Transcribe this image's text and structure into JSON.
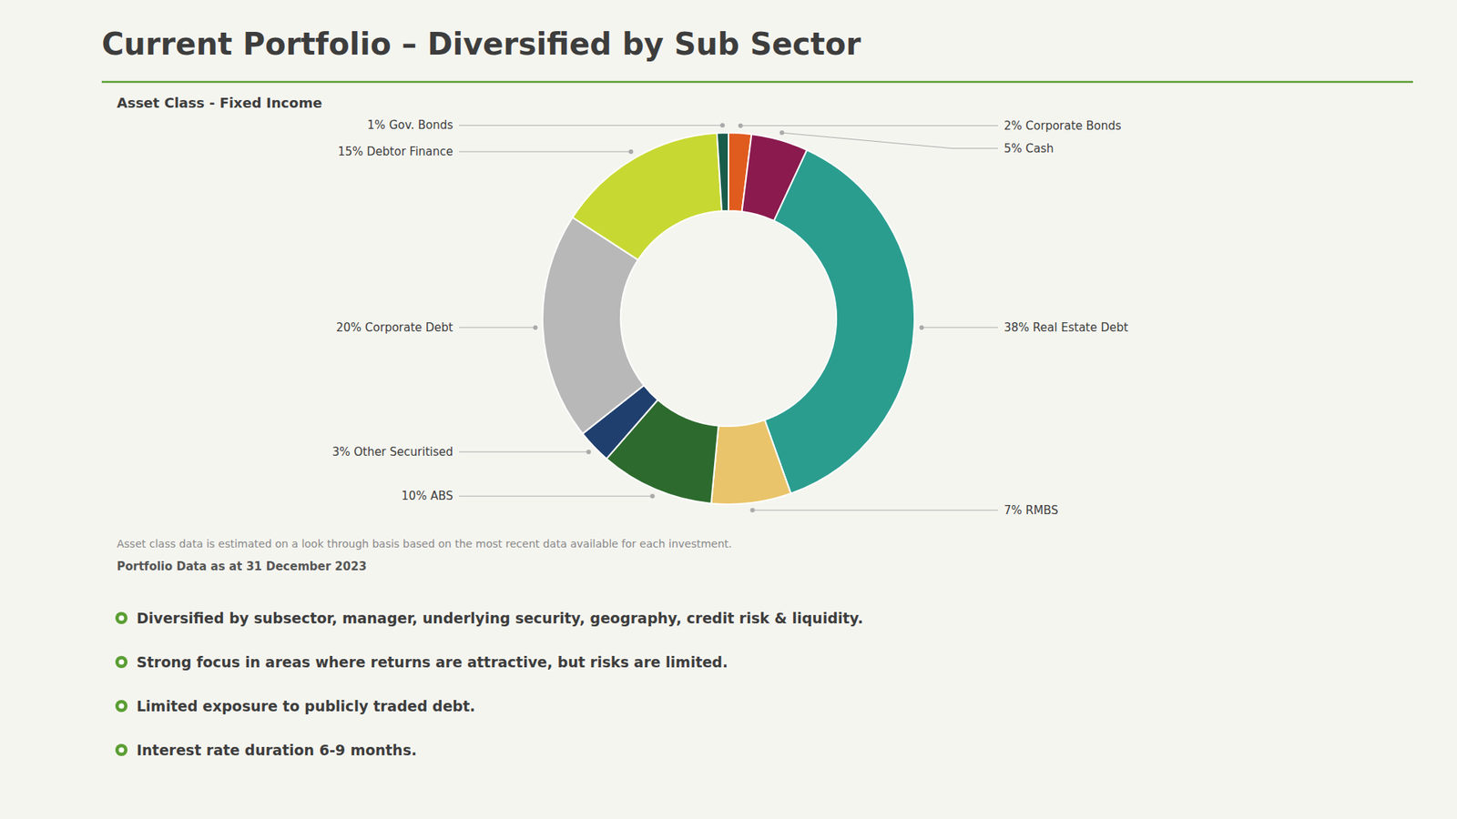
{
  "chart_data": {
    "type": "donut",
    "title": "Current Portfolio – Diversified by Sub Sector",
    "subtitle": "Asset Class - Fixed Income",
    "categories": [
      "2% Corporate Bonds",
      "5% Cash",
      "38% Real Estate Debt",
      "7% RMBS",
      "10% ABS",
      "3% Other Securitised",
      "20% Corporate Debt",
      "15% Debtor Finance",
      "1% Gov. Bonds"
    ],
    "values": [
      2,
      5,
      38,
      7,
      10,
      3,
      20,
      15,
      1
    ],
    "colors": [
      "#e05c1e",
      "#8b1a4e",
      "#2a9d8f",
      "#e9c46a",
      "#2d6a2d",
      "#1f3f6e",
      "#b8b8b8",
      "#c8d832",
      "#1a5c4a"
    ],
    "notes": [
      "Asset class data is estimated on a look through basis based on the most recent data available for each investment.",
      "Portfolio Data as at 31 December 2023"
    ],
    "bullets": [
      "Diversified by subsector, manager, underlying security, geography, credit risk & liquidity.",
      "Strong focus in areas where returns are attractive, but risks are limited.",
      "Limited exposure to publicly traded debt.",
      "Interest rate duration 6-9 months."
    ]
  }
}
